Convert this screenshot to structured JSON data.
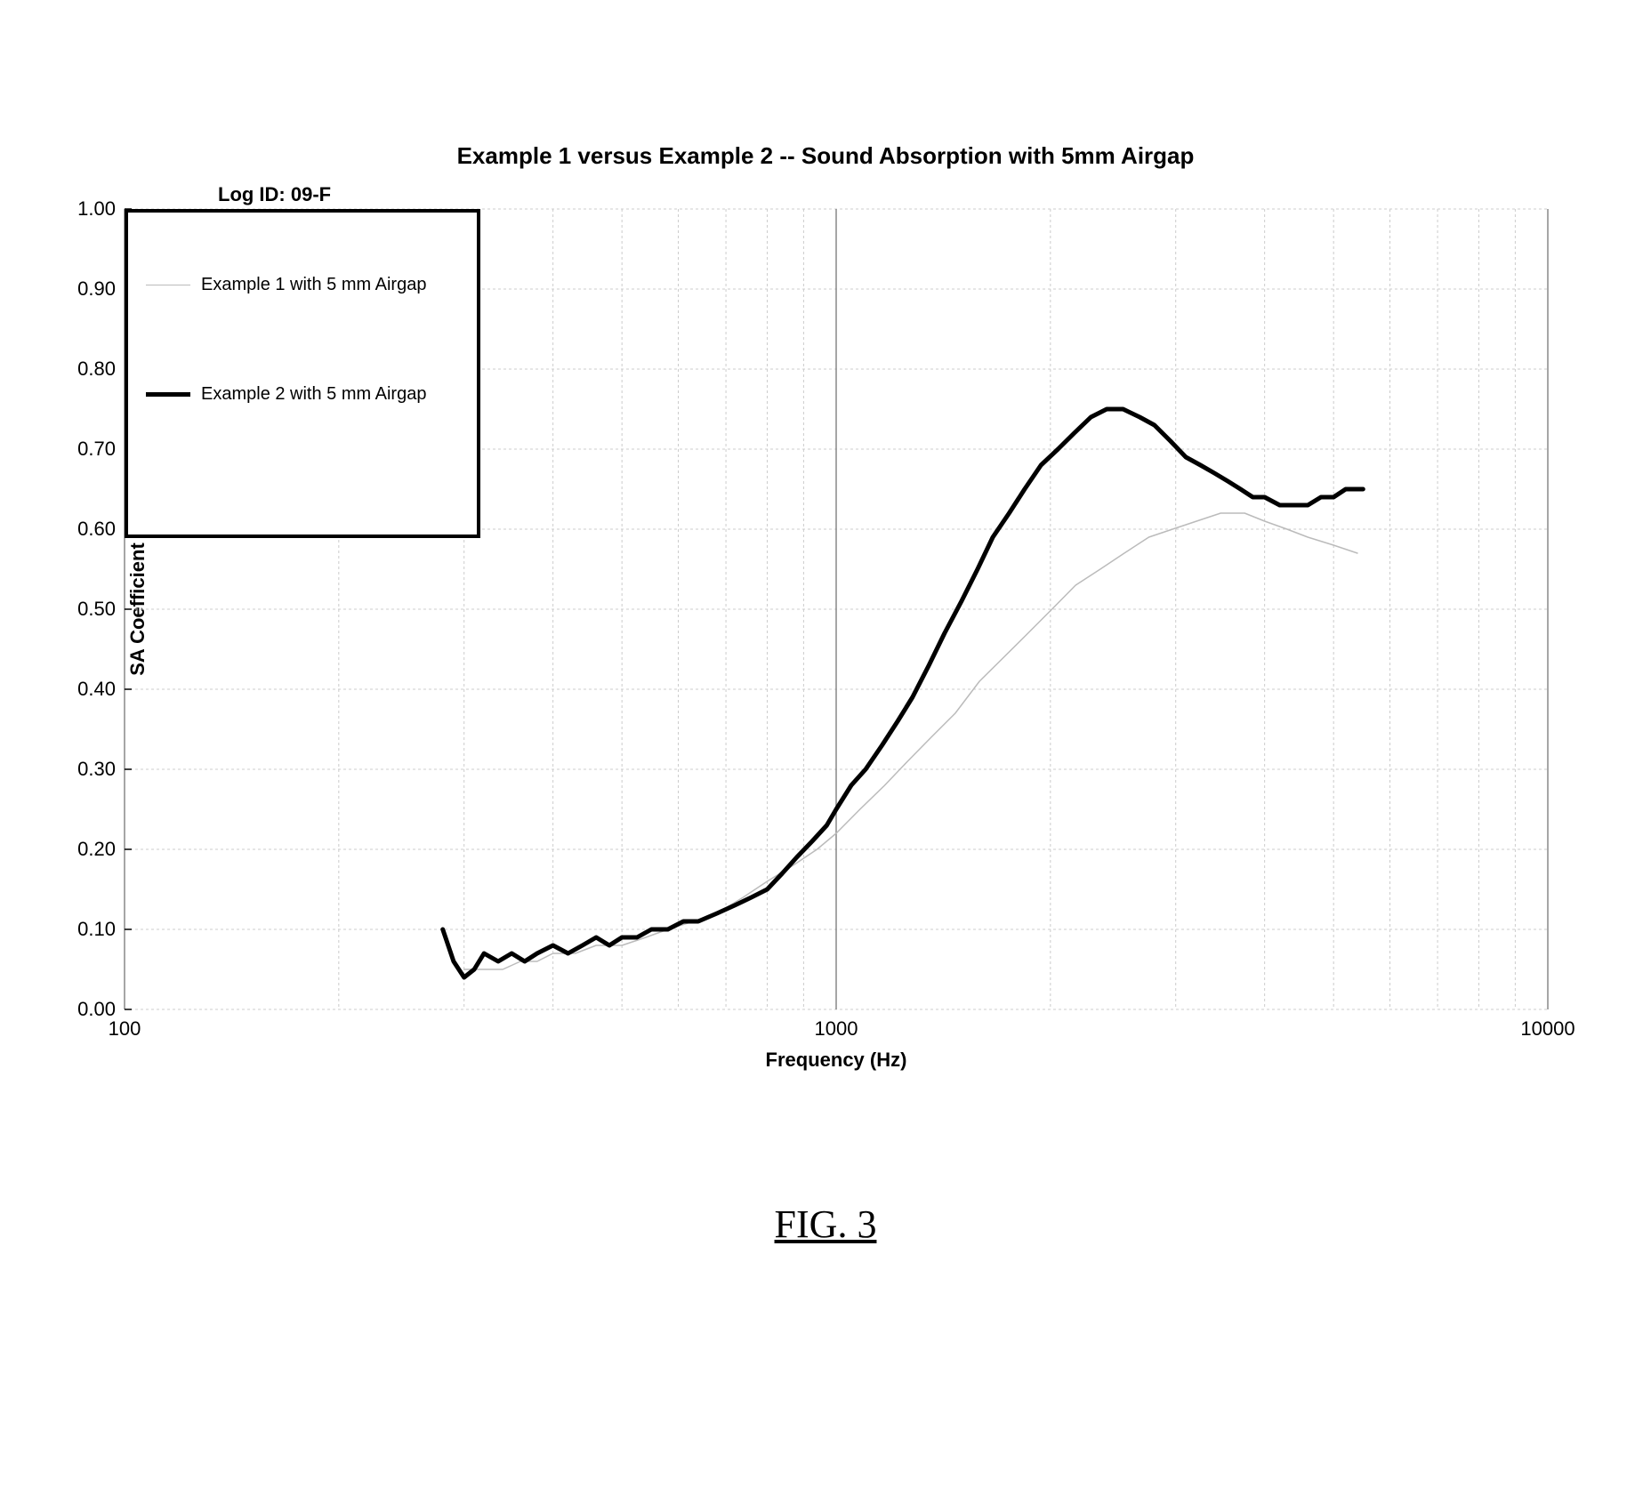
{
  "chart": {
    "title": "Example 1 versus Example 2 -- Sound Absorption with 5mm Airgap",
    "log_id": "Log ID: 09-F",
    "xlabel": "Frequency (Hz)",
    "ylabel": "SA Coefficient",
    "figure_label": "FIG. 3",
    "type": "line",
    "x_scale": "log",
    "xlim": [
      100,
      10000
    ],
    "ylim": [
      0.0,
      1.0
    ],
    "ytick_step": 0.1,
    "ytick_labels": [
      "0.00",
      "0.10",
      "0.20",
      "0.30",
      "0.40",
      "0.50",
      "0.60",
      "0.70",
      "0.80",
      "0.90",
      "1.00"
    ],
    "xtick_major": [
      100,
      1000,
      10000
    ],
    "xtick_minor": [
      200,
      300,
      400,
      500,
      600,
      700,
      800,
      900,
      2000,
      3000,
      4000,
      5000,
      6000,
      7000,
      8000,
      9000
    ],
    "background_color": "#ffffff",
    "grid_color_major": "#888888",
    "grid_color_minor": "#cccccc",
    "grid_dash_minor": "3,3",
    "axis_color": "#000000",
    "title_fontsize": 26,
    "label_fontsize": 22,
    "tick_fontsize": 22,
    "legend": {
      "border_color": "#000000",
      "border_width": 4,
      "background": "#ffffff",
      "position": "top-left-inside",
      "items": [
        {
          "label": "Example 1 with 5 mm Airgap",
          "color": "#bbbbbb",
          "line_width": 1.5
        },
        {
          "label": "Example 2 with 5 mm Airgap",
          "color": "#000000",
          "line_width": 5
        }
      ]
    },
    "series": [
      {
        "name": "Example 1 with 5 mm Airgap",
        "color": "#bbbbbb",
        "line_width": 1.5,
        "x": [
          300,
          320,
          340,
          360,
          380,
          400,
          430,
          460,
          500,
          540,
          580,
          630,
          680,
          740,
          800,
          870,
          940,
          1000,
          1080,
          1170,
          1260,
          1360,
          1470,
          1590,
          1720,
          1860,
          2010,
          2170,
          2350,
          2540,
          2750,
          2970,
          3210,
          3470,
          3750,
          4000,
          4300,
          4600,
          5000,
          5400
        ],
        "y": [
          0.05,
          0.05,
          0.05,
          0.06,
          0.06,
          0.07,
          0.07,
          0.08,
          0.08,
          0.09,
          0.1,
          0.11,
          0.12,
          0.14,
          0.16,
          0.18,
          0.2,
          0.22,
          0.25,
          0.28,
          0.31,
          0.34,
          0.37,
          0.41,
          0.44,
          0.47,
          0.5,
          0.53,
          0.55,
          0.57,
          0.59,
          0.6,
          0.61,
          0.62,
          0.62,
          0.61,
          0.6,
          0.59,
          0.58,
          0.57
        ]
      },
      {
        "name": "Example 2 with 5 mm Airgap",
        "color": "#000000",
        "line_width": 5,
        "x": [
          280,
          290,
          300,
          310,
          320,
          335,
          350,
          365,
          380,
          400,
          420,
          440,
          460,
          480,
          500,
          525,
          550,
          580,
          610,
          640,
          680,
          720,
          760,
          800,
          840,
          880,
          925,
          970,
          1000,
          1050,
          1100,
          1160,
          1220,
          1280,
          1350,
          1420,
          1500,
          1580,
          1660,
          1750,
          1840,
          1940,
          2050,
          2160,
          2280,
          2400,
          2530,
          2670,
          2800,
          2950,
          3100,
          3250,
          3400,
          3550,
          3700,
          3850,
          4000,
          4200,
          4400,
          4600,
          4800,
          5000,
          5200,
          5500
        ],
        "y": [
          0.1,
          0.06,
          0.04,
          0.05,
          0.07,
          0.06,
          0.07,
          0.06,
          0.07,
          0.08,
          0.07,
          0.08,
          0.09,
          0.08,
          0.09,
          0.09,
          0.1,
          0.1,
          0.11,
          0.11,
          0.12,
          0.13,
          0.14,
          0.15,
          0.17,
          0.19,
          0.21,
          0.23,
          0.25,
          0.28,
          0.3,
          0.33,
          0.36,
          0.39,
          0.43,
          0.47,
          0.51,
          0.55,
          0.59,
          0.62,
          0.65,
          0.68,
          0.7,
          0.72,
          0.74,
          0.75,
          0.75,
          0.74,
          0.73,
          0.71,
          0.69,
          0.68,
          0.67,
          0.66,
          0.65,
          0.64,
          0.64,
          0.63,
          0.63,
          0.63,
          0.64,
          0.64,
          0.65,
          0.65
        ]
      }
    ]
  }
}
